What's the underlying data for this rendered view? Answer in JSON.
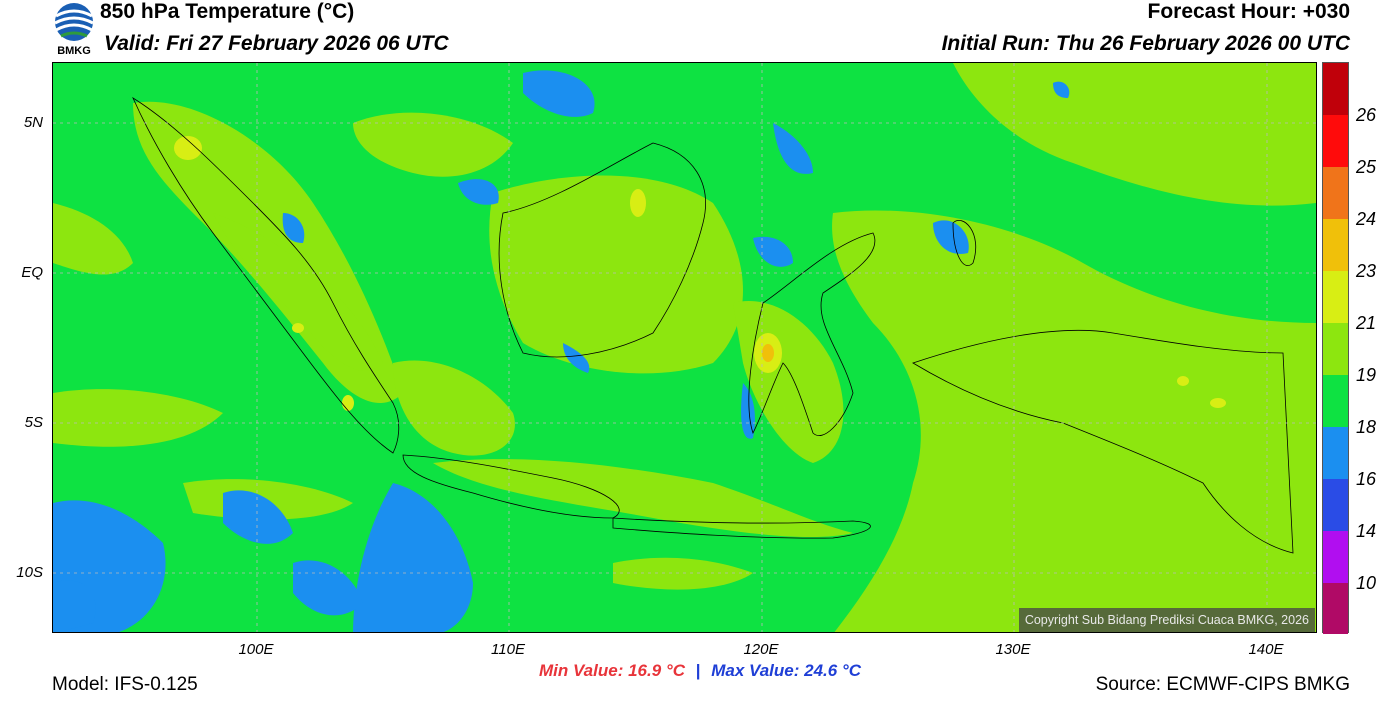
{
  "header": {
    "title": "850 hPa Temperature (°C)",
    "valid": "Valid: Fri 27 February 2026 06 UTC",
    "forecast_hour": "Forecast Hour: +030",
    "initial_run": "Initial Run: Thu 26 February 2026 00 UTC",
    "logo_text": "BMKG"
  },
  "map": {
    "lat_labels": [
      "5N",
      "EQ",
      "5S",
      "10S"
    ],
    "lon_labels": [
      "100E",
      "110E",
      "120E",
      "130E",
      "140E"
    ],
    "copyright": "Copyright Sub Bidang Prediksi Cuaca BMKG, 2026"
  },
  "colorbar": {
    "labels": [
      "26",
      "25",
      "24",
      "23",
      "21",
      "19",
      "18",
      "16",
      "14",
      "10"
    ],
    "colors": [
      "#c0000a",
      "#ff0b0b",
      "#f0741a",
      "#f0c00a",
      "#d8ee14",
      "#8de60f",
      "#0ee242",
      "#1b8ff0",
      "#2a4ce6",
      "#b10ef0",
      "#b00a66"
    ]
  },
  "footer": {
    "min_value": "Min Value: 16.9 °C",
    "separator": "|",
    "max_value": "Max Value: 24.6 °C",
    "model": "Model: IFS-0.125",
    "source": "Source: ECMWF-CIPS BMKG"
  },
  "colors": {
    "field_green": "#0ee242",
    "field_lime": "#8de60f",
    "field_blue": "#1b8ff0",
    "field_yellow": "#d8ee14"
  }
}
